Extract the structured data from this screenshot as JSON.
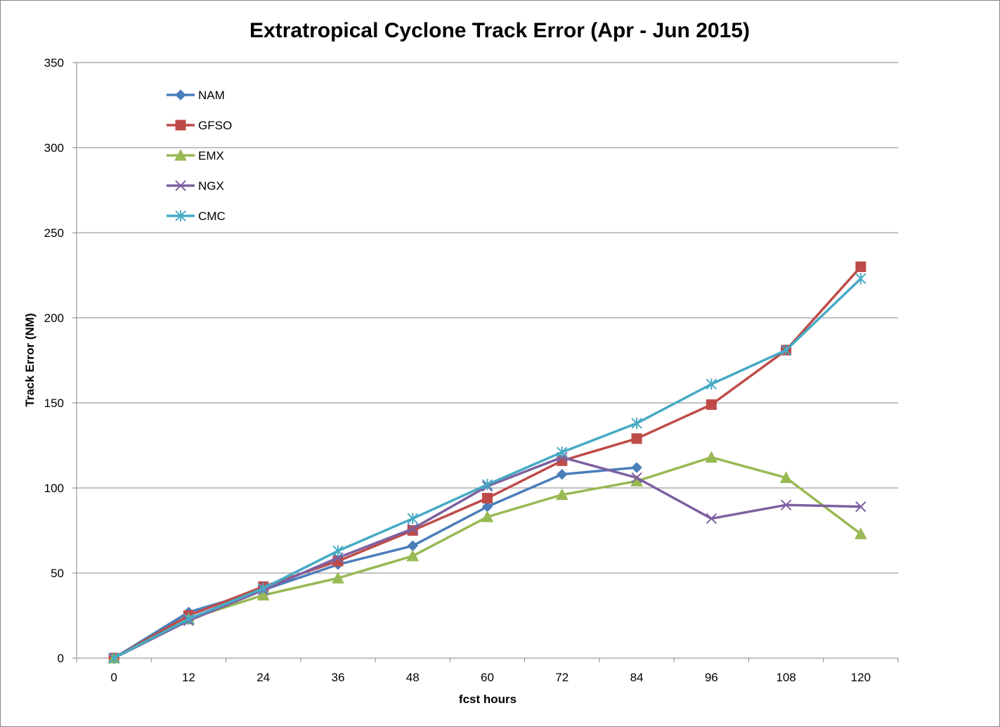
{
  "chart_data": {
    "type": "line",
    "title": "Extratropical Cyclone Track Error (Apr - Jun 2015)",
    "xlabel": "fcst hours",
    "ylabel": "Track Error  (NM)",
    "categories": [
      "0",
      "12",
      "24",
      "36",
      "48",
      "60",
      "72",
      "84",
      "96",
      "108",
      "120"
    ],
    "ylim": [
      0,
      350
    ],
    "yticks": [
      "0",
      "50",
      "100",
      "150",
      "200",
      "250",
      "300",
      "350"
    ],
    "grid": "horizontal",
    "legend": "top-left",
    "series": [
      {
        "name": "NAM",
        "color": "#4a7ebb",
        "marker": "diamond",
        "values": [
          0,
          27,
          40,
          55,
          66,
          89,
          108,
          112,
          null,
          null,
          null
        ]
      },
      {
        "name": "GFSO",
        "color": "#be4b48",
        "marker": "square",
        "values": [
          0,
          25,
          42,
          57,
          75,
          94,
          116,
          129,
          149,
          181,
          230
        ]
      },
      {
        "name": "EMX",
        "color": "#98b954",
        "marker": "triangle",
        "values": [
          0,
          23,
          37,
          47,
          60,
          83,
          96,
          104,
          118,
          106,
          73
        ]
      },
      {
        "name": "NGX",
        "color": "#7d60a0",
        "marker": "x",
        "values": [
          0,
          22,
          40,
          59,
          76,
          101,
          118,
          106,
          82,
          90,
          89
        ]
      },
      {
        "name": "CMC",
        "color": "#46aac5",
        "marker": "star",
        "values": [
          0,
          23,
          41,
          63,
          82,
          102,
          121,
          138,
          161,
          181,
          223
        ]
      }
    ]
  }
}
